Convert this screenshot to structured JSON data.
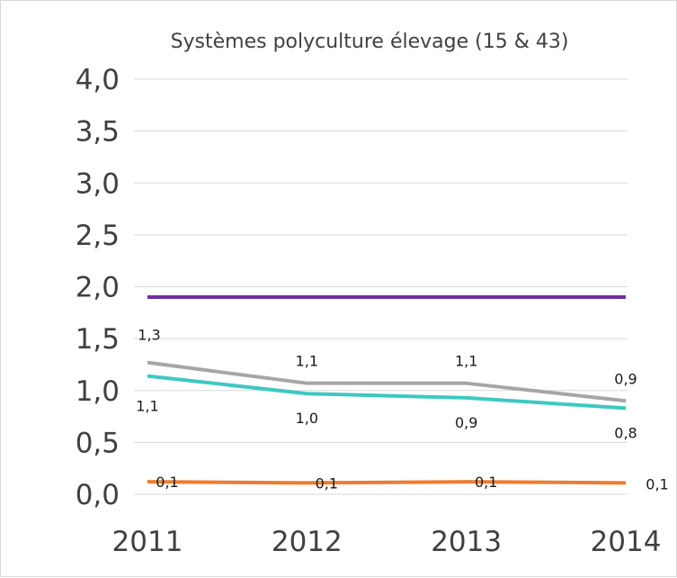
{
  "chart_data": {
    "type": "line",
    "title": "Systèmes polyculture élevage (15 & 43)",
    "xlabel": "",
    "ylabel": "",
    "categories": [
      "2011",
      "2012",
      "2013",
      "2014"
    ],
    "y_ticks": [
      "0,0",
      "0,5",
      "1,0",
      "1,5",
      "2,0",
      "2,5",
      "3,0",
      "3,5",
      "4,0"
    ],
    "ylim": [
      0,
      4
    ],
    "grid": true,
    "legend": "none",
    "series": [
      {
        "color": "#7030a0",
        "values": [
          1.9,
          1.9,
          1.9,
          1.9
        ],
        "labels": [
          "",
          "",
          "",
          ""
        ],
        "label_position": "none"
      },
      {
        "color": "#a6a6a6",
        "values": [
          1.27,
          1.07,
          1.07,
          0.9
        ],
        "labels": [
          "1,3",
          "1,1",
          "1,1",
          "0,9"
        ],
        "label_position": "above"
      },
      {
        "color": "#3ec8c0",
        "values": [
          1.14,
          0.97,
          0.93,
          0.83
        ],
        "labels": [
          "1,1",
          "1,0",
          "0,9",
          "0,8"
        ],
        "label_position": "below"
      },
      {
        "color": "#ed7d31",
        "values": [
          0.12,
          0.11,
          0.12,
          0.11
        ],
        "labels": [
          "0,1",
          "0,1",
          "0,1",
          "0,1"
        ],
        "label_position": "right"
      }
    ]
  }
}
